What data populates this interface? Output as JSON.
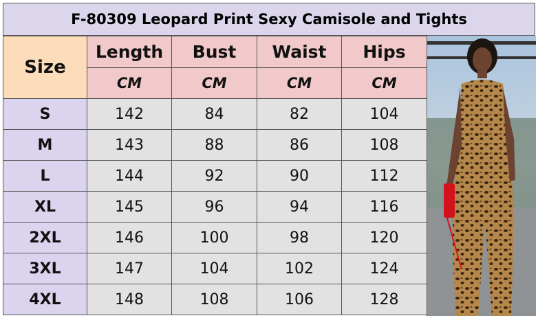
{
  "header": {
    "title": "F-80309 Leopard Print Sexy Camisole and Tights"
  },
  "table": {
    "size_header": "Size",
    "columns": [
      "Length",
      "Bust",
      "Waist",
      "Hips"
    ],
    "units": [
      "CM",
      "CM",
      "CM",
      "CM"
    ],
    "rows": [
      [
        "S",
        "142",
        "84",
        "82",
        "104"
      ],
      [
        "M",
        "143",
        "88",
        "86",
        "108"
      ],
      [
        "L",
        "144",
        "92",
        "90",
        "112"
      ],
      [
        "XL",
        "145",
        "96",
        "94",
        "116"
      ],
      [
        "2XL",
        "146",
        "100",
        "98",
        "120"
      ],
      [
        "3XL",
        "147",
        "104",
        "102",
        "124"
      ],
      [
        "4XL",
        "148",
        "108",
        "106",
        "128"
      ]
    ]
  }
}
